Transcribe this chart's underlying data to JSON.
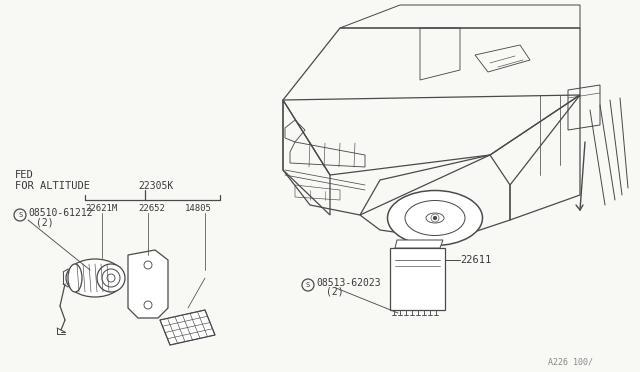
{
  "bg_color": "#f8f8f5",
  "line_color": "#4a4a4a",
  "text_color": "#3a3a3a",
  "fig_note": "A226 100/",
  "labels": {
    "fed": "FED",
    "for_altitude": "FOR ALTITUDE",
    "part1": "22305K",
    "screw1": "08510-61212",
    "screw1_qty": "(2)",
    "part2": "22621M",
    "part3": "22652",
    "part4": "14805",
    "screw2": "08513-62023",
    "screw2_qty": "(2)",
    "ecm": "22611"
  }
}
